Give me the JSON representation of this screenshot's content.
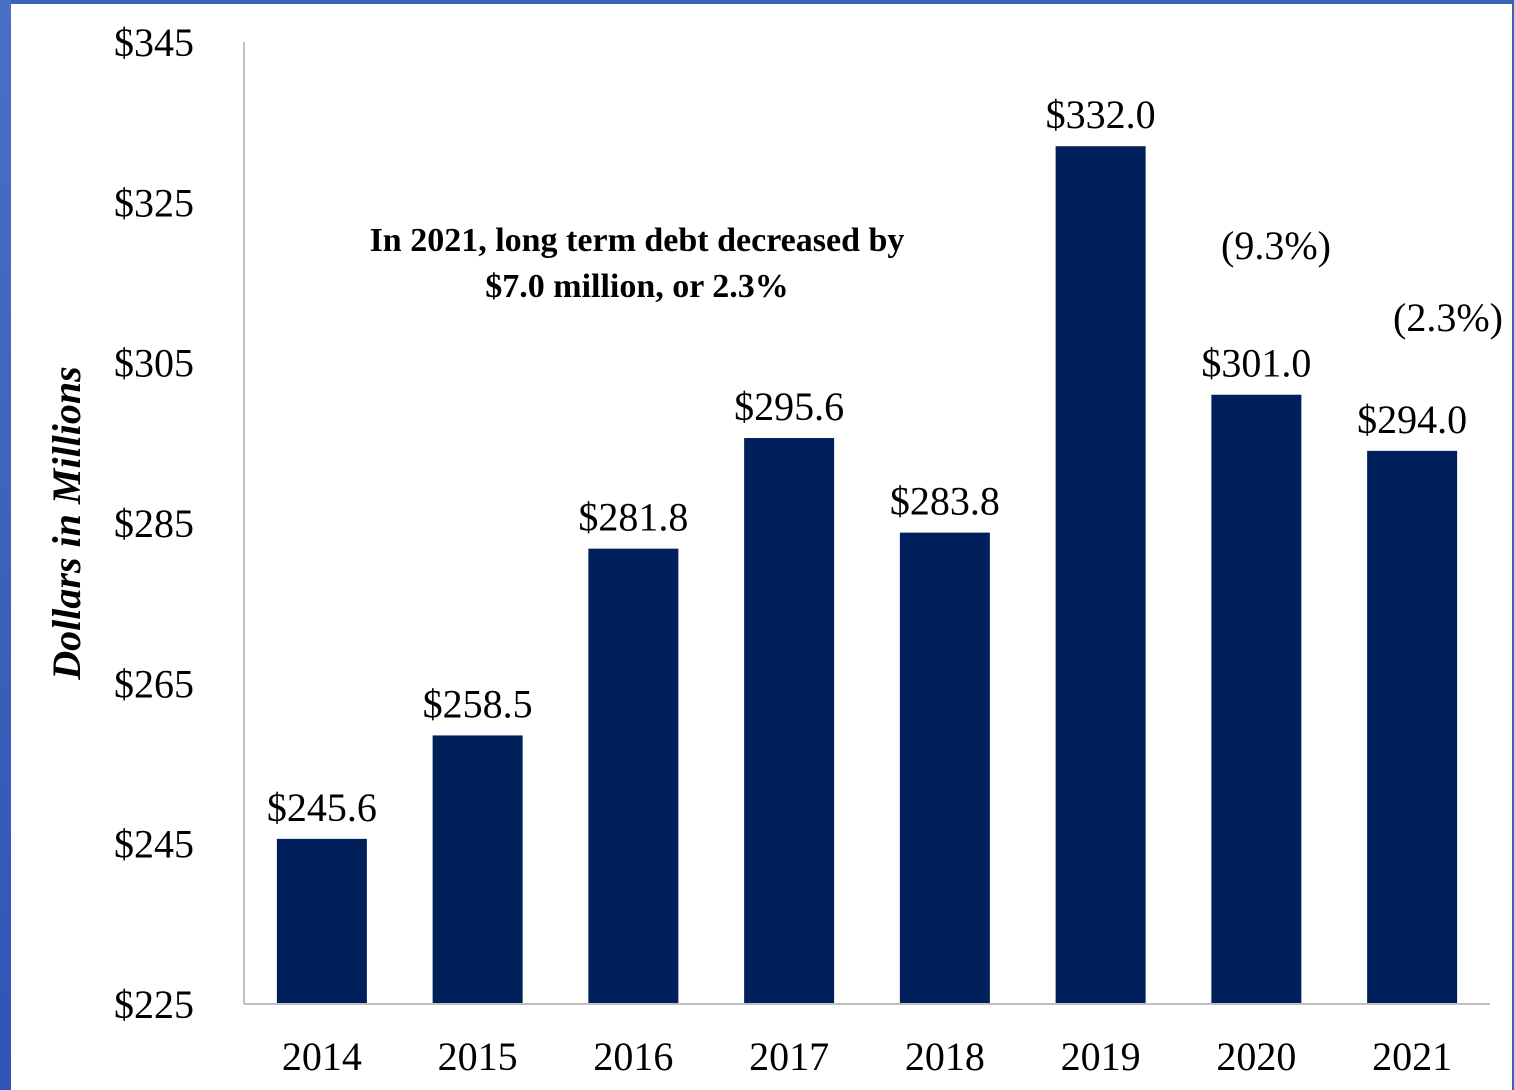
{
  "chart_data": {
    "type": "bar",
    "title": "",
    "xlabel": "",
    "ylabel": "Dollars in Millions",
    "categories": [
      "2014",
      "2015",
      "2016",
      "2017",
      "2018",
      "2019",
      "2020",
      "2021"
    ],
    "values": [
      245.6,
      258.5,
      281.8,
      295.6,
      283.8,
      332.0,
      301.0,
      294.0
    ],
    "data_labels": [
      "$245.6",
      "$258.5",
      "$281.8",
      "$295.6",
      "$283.8",
      "$332.0",
      "$301.0",
      "$294.0"
    ],
    "ylim": [
      225,
      345
    ],
    "yticks": [
      225,
      245,
      265,
      285,
      305,
      325,
      345
    ],
    "ytick_labels": [
      "$225",
      "$245",
      "$265",
      "$285",
      "$305",
      "$325",
      "$345"
    ],
    "grid": false,
    "legend": "none",
    "colors": {
      "bar": "#00205c",
      "axis": "#bfbfbf",
      "frame_edge": "#3d63b8"
    },
    "annotations": {
      "headline_line1": "In 2021, long term debt decreased by",
      "headline_line2": "$7.0 million, or 2.3%",
      "pct_changes": [
        {
          "category": "2020",
          "text": "(9.3%)"
        },
        {
          "category": "2021",
          "text": "(2.3%)"
        }
      ]
    }
  }
}
